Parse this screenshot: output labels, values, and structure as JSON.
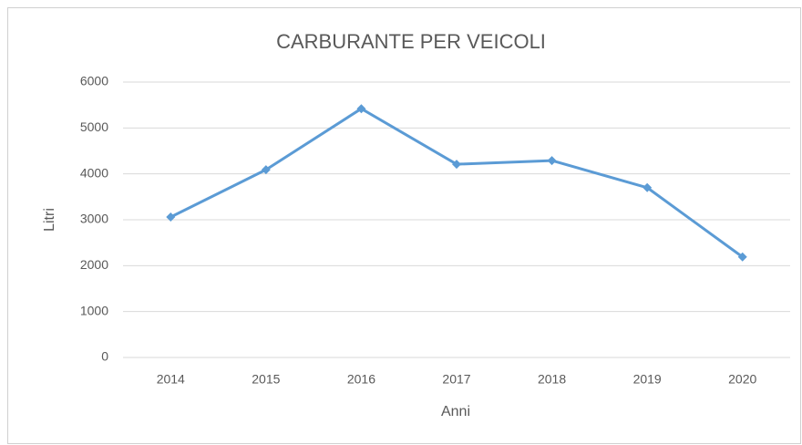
{
  "chart_data": {
    "type": "line",
    "title": "CARBURANTE PER VEICOLI",
    "x_label": "Anni",
    "y_label": "Litri",
    "categories": [
      "2014",
      "2015",
      "2016",
      "2017",
      "2018",
      "2019",
      "2020"
    ],
    "series": [
      {
        "name": "Litri",
        "color": "#5b9bd5",
        "values": [
          3060,
          4090,
          5420,
          4210,
          4290,
          3700,
          2190
        ]
      }
    ],
    "ylim": [
      0,
      6000
    ],
    "yticks": [
      0,
      1000,
      2000,
      3000,
      4000,
      5000,
      6000
    ],
    "grid": true,
    "legend": false
  }
}
